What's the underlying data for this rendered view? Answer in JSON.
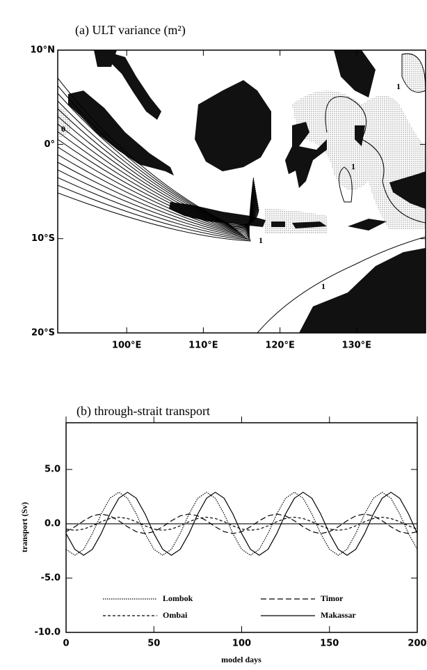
{
  "chart_data": [
    {
      "type": "map",
      "title": "(a) ULT variance (m²)",
      "xlim": [
        91,
        139
      ],
      "ylim": [
        -20,
        10
      ],
      "xticks": [
        {
          "value": 100,
          "label": "100°E"
        },
        {
          "value": 110,
          "label": "110°E"
        },
        {
          "value": 120,
          "label": "120°E"
        },
        {
          "value": 130,
          "label": "130°E"
        }
      ],
      "yticks": [
        {
          "value": 10,
          "label": "10°N"
        },
        {
          "value": 0,
          "label": "0°"
        },
        {
          "value": -10,
          "label": "10°S"
        },
        {
          "value": -20,
          "label": "20°S"
        }
      ],
      "contour_labels": [
        "1",
        "1",
        "1",
        "1",
        "0"
      ]
    },
    {
      "type": "line",
      "title": "(b) through-strait transport",
      "xlabel": "model days",
      "ylabel": "transport (Sv)",
      "xlim": [
        0,
        200
      ],
      "ylim": [
        -10,
        9.3
      ],
      "xticks": [
        0,
        50,
        100,
        150,
        200
      ],
      "yticks": [
        {
          "value": 5,
          "label": "5.0"
        },
        {
          "value": 0,
          "label": "0.0"
        },
        {
          "value": -5,
          "label": "-5.0"
        },
        {
          "value": -10,
          "label": "-10.0"
        }
      ],
      "zero_line": true,
      "x": [
        0,
        5,
        10,
        15,
        20,
        25,
        30,
        35,
        40,
        45,
        50,
        55,
        60,
        65,
        70,
        75,
        80,
        85,
        90,
        95,
        100,
        105,
        110,
        115,
        120,
        125,
        130,
        135,
        140,
        145,
        150,
        155,
        160,
        165,
        170,
        175,
        180,
        185,
        190,
        195,
        200
      ],
      "series": [
        {
          "name": "Lombok",
          "color": "#000000",
          "style": "dotted",
          "values": [
            -2.35,
            -2.9,
            -2.35,
            -0.9,
            0.9,
            2.35,
            2.9,
            2.35,
            0.9,
            -0.9,
            -2.35,
            -2.9,
            -2.35,
            -0.9,
            0.9,
            2.35,
            2.9,
            2.35,
            0.9,
            -0.9,
            -2.35,
            -2.9,
            -2.35,
            -0.9,
            0.9,
            2.35,
            2.9,
            2.35,
            0.9,
            -0.9,
            -2.35,
            -2.9,
            -2.35,
            -0.9,
            0.9,
            2.35,
            2.9,
            2.35,
            0.9,
            -0.9,
            -2.35
          ]
        },
        {
          "name": "Ombai",
          "color": "#000000",
          "style": "dashed",
          "values": [
            -0.49,
            -0.6,
            -0.49,
            -0.19,
            0.19,
            0.49,
            0.6,
            0.49,
            0.19,
            -0.19,
            -0.49,
            -0.6,
            -0.49,
            -0.19,
            0.19,
            0.49,
            0.6,
            0.49,
            0.19,
            -0.19,
            -0.49,
            -0.6,
            -0.49,
            -0.19,
            0.19,
            0.49,
            0.6,
            0.49,
            0.19,
            -0.19,
            -0.49,
            -0.6,
            -0.49,
            -0.19,
            0.19,
            0.49,
            0.6,
            0.49,
            0.19,
            -0.19,
            -0.49
          ]
        },
        {
          "name": "Timor",
          "color": "#000000",
          "style": "long-dashed",
          "values": [
            -0.73,
            -0.28,
            0.28,
            0.73,
            0.9,
            0.73,
            0.28,
            -0.28,
            -0.73,
            -0.9,
            -0.73,
            -0.28,
            0.28,
            0.73,
            0.9,
            0.73,
            0.28,
            -0.28,
            -0.73,
            -0.9,
            -0.73,
            -0.28,
            0.28,
            0.73,
            0.9,
            0.73,
            0.28,
            -0.28,
            -0.73,
            -0.9,
            -0.73,
            -0.28,
            0.28,
            0.73,
            0.9,
            0.73,
            0.28,
            -0.28,
            -0.73,
            -0.9,
            -0.73
          ]
        },
        {
          "name": "Makassar",
          "color": "#000000",
          "style": "solid",
          "values": [
            -0.9,
            -2.35,
            -2.9,
            -2.35,
            -0.9,
            0.9,
            2.35,
            2.9,
            2.35,
            0.9,
            -0.9,
            -2.35,
            -2.9,
            -2.35,
            -0.9,
            0.9,
            2.35,
            2.9,
            2.35,
            0.9,
            -0.9,
            -2.35,
            -2.9,
            -2.35,
            -0.9,
            0.9,
            2.35,
            2.9,
            2.35,
            0.9,
            -0.9,
            -2.35,
            -2.9,
            -2.35,
            -0.9,
            0.9,
            2.35,
            2.9,
            2.35,
            0.9,
            -0.9
          ]
        }
      ]
    }
  ]
}
